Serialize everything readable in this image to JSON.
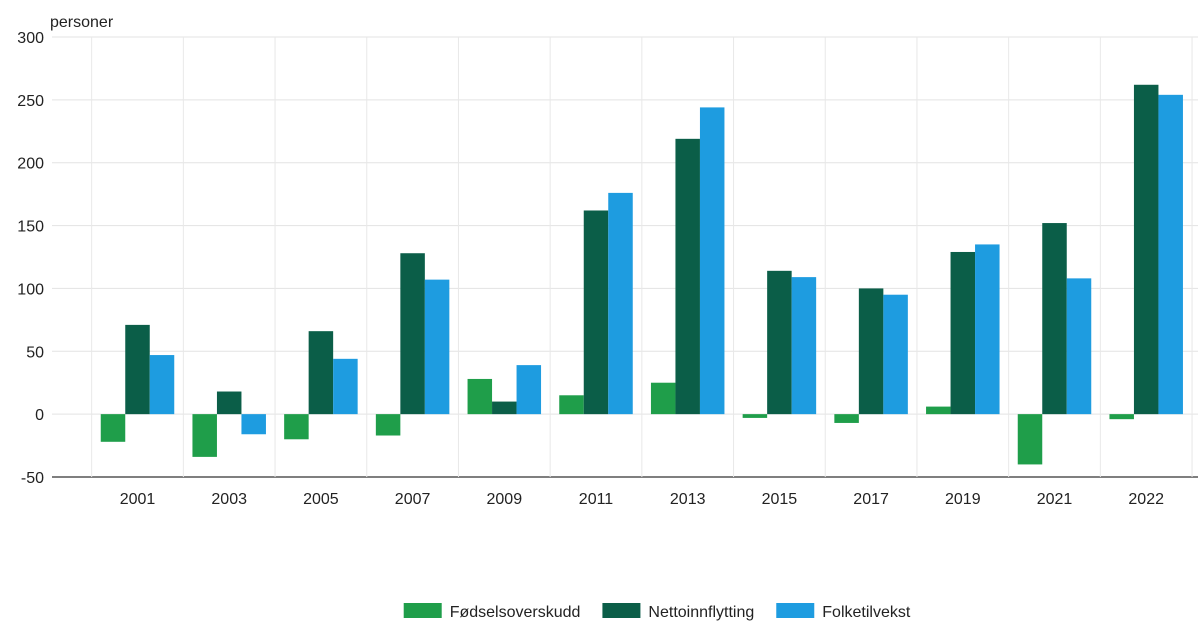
{
  "chart_data": {
    "type": "bar",
    "ylabel": "personer",
    "ylim": [
      -50,
      300
    ],
    "yticks": [
      -50,
      0,
      50,
      100,
      150,
      200,
      250,
      300
    ],
    "grid": true,
    "legend_position": "bottom",
    "categories": [
      "2001",
      "2003",
      "2005",
      "2007",
      "2009",
      "2011",
      "2013",
      "2015",
      "2017",
      "2019",
      "2021",
      "2022"
    ],
    "series": [
      {
        "name": "Fødselsoverskudd",
        "color": "#1f9e4a",
        "values": [
          -22,
          -34,
          -20,
          -17,
          28,
          15,
          25,
          -3,
          -7,
          6,
          -40,
          -4
        ]
      },
      {
        "name": "Nettoinnflytting",
        "color": "#0b5e48",
        "values": [
          71,
          18,
          66,
          128,
          10,
          162,
          219,
          114,
          100,
          129,
          152,
          262
        ]
      },
      {
        "name": "Folketilvekst",
        "color": "#1e9ce0",
        "values": [
          47,
          -16,
          44,
          107,
          39,
          176,
          244,
          109,
          95,
          135,
          108,
          254
        ]
      }
    ]
  }
}
